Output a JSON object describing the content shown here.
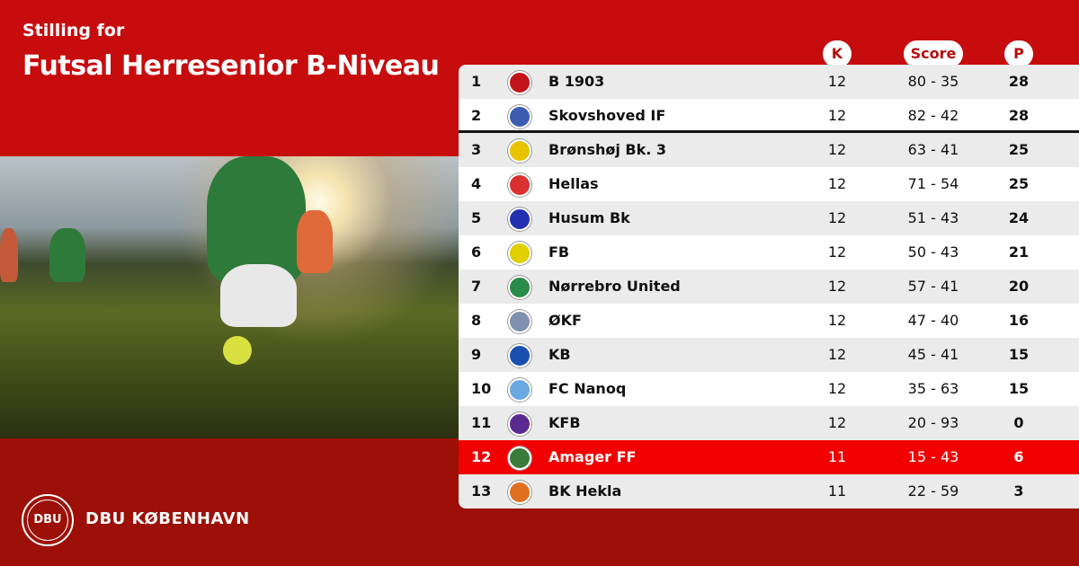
{
  "header": {
    "subtitle": "Stilling for",
    "title": "Futsal Herresenior B-Niveau"
  },
  "columns": {
    "k": "K",
    "score": "Score",
    "p": "P"
  },
  "colors": {
    "top": "#c70c0e",
    "bottom": "#9c1007",
    "highlight": "#f20000"
  },
  "rows": [
    {
      "rank": "1",
      "team": "B 1903",
      "k": "12",
      "score": "80 - 35",
      "p": "28",
      "logo_color": "#c0141a"
    },
    {
      "rank": "2",
      "team": "Skovshoved IF",
      "k": "12",
      "score": "82 - 42",
      "p": "28",
      "logo_color": "#3a5db0"
    },
    {
      "rank": "3",
      "team": "Brønshøj Bk. 3",
      "k": "12",
      "score": "63 - 41",
      "p": "25",
      "logo_color": "#e8c400"
    },
    {
      "rank": "4",
      "team": "Hellas",
      "k": "12",
      "score": "71 - 54",
      "p": "25",
      "logo_color": "#d93030"
    },
    {
      "rank": "5",
      "team": "Husum Bk",
      "k": "12",
      "score": "51 - 43",
      "p": "24",
      "logo_color": "#2030b0"
    },
    {
      "rank": "6",
      "team": "FB",
      "k": "12",
      "score": "50 - 43",
      "p": "21",
      "logo_color": "#e0d000"
    },
    {
      "rank": "7",
      "team": "Nørrebro United",
      "k": "12",
      "score": "57 - 41",
      "p": "20",
      "logo_color": "#2a8a4a"
    },
    {
      "rank": "8",
      "team": "ØKF",
      "k": "12",
      "score": "47 - 40",
      "p": "16",
      "logo_color": "#8090b0"
    },
    {
      "rank": "9",
      "team": "KB",
      "k": "12",
      "score": "45 - 41",
      "p": "15",
      "logo_color": "#1a4fb0"
    },
    {
      "rank": "10",
      "team": "FC Nanoq",
      "k": "12",
      "score": "35 - 63",
      "p": "15",
      "logo_color": "#6aa8e0"
    },
    {
      "rank": "11",
      "team": "KFB",
      "k": "12",
      "score": "20 - 93",
      "p": "0",
      "logo_color": "#5a2a90"
    },
    {
      "rank": "12",
      "team": "Amager FF",
      "k": "11",
      "score": "15 - 43",
      "p": "6",
      "logo_color": "#3a7a3a"
    },
    {
      "rank": "13",
      "team": "BK Hekla",
      "k": "11",
      "score": "22 - 59",
      "p": "3",
      "logo_color": "#e07020"
    }
  ],
  "highlight_rank": "12",
  "footer": {
    "brand": "DBU KØBENHAVN",
    "seal_text": "DBU"
  }
}
